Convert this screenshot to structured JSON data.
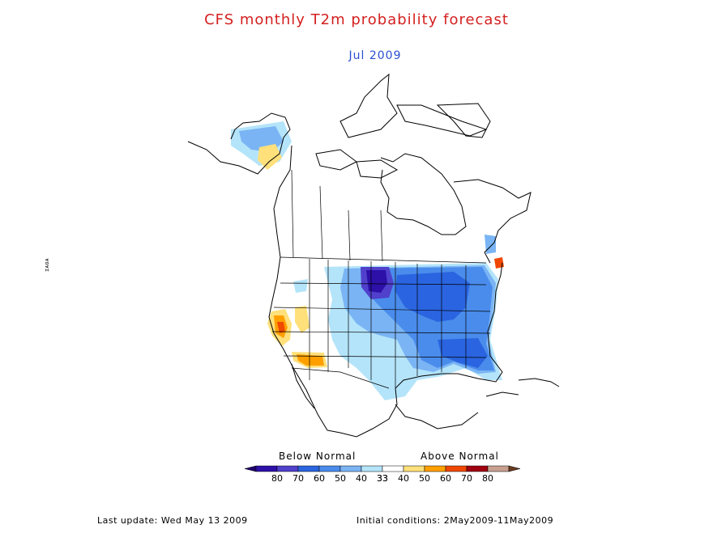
{
  "header": {
    "title": "CFS monthly T2m probability forecast",
    "subtitle": "Jul 2009"
  },
  "side_label": "ɪᴀᴏᴀ",
  "legend": {
    "below_label": "Below Normal",
    "above_label": "Above Normal",
    "bins": [
      {
        "label": "80",
        "color": "#2c10a8"
      },
      {
        "label": "70",
        "color": "#5040cc"
      },
      {
        "label": "60",
        "color": "#2a64e0"
      },
      {
        "label": "50",
        "color": "#4a8cec"
      },
      {
        "label": "40",
        "color": "#7ab4f4"
      },
      {
        "label": "33",
        "color": "#b4e4fa"
      },
      {
        "label": "33",
        "color": "#ffffff"
      },
      {
        "label": "40",
        "color": "#ffe07a"
      },
      {
        "label": "50",
        "color": "#ffa000"
      },
      {
        "label": "60",
        "color": "#f04800"
      },
      {
        "label": "70",
        "color": "#a00010"
      },
      {
        "label": "80",
        "color": "#c8a090"
      }
    ],
    "end_colors": {
      "low": "#200070",
      "high": "#6a3a20"
    }
  },
  "footer": {
    "last_update": "Last update: Wed May 13 2009",
    "initial_conditions": "Initial conditions: 2May2009-11May2009"
  }
}
